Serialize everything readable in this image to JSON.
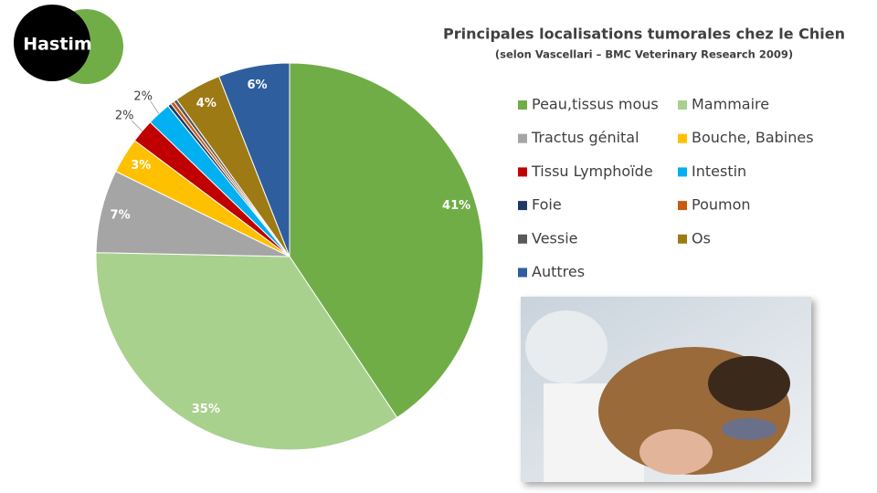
{
  "logo": {
    "text": "Hastim"
  },
  "chart_data": {
    "type": "pie",
    "title": "Principales localisations tumorales chez le Chien",
    "subtitle": "(selon Vascellari – BMC Veterinary Research 2009)",
    "categories": [
      "Peau,tissus mous",
      "Mammaire",
      "Tractus génital",
      "Bouche, Babines",
      "Tissu Lymphoïde",
      "Intestin",
      "Foie",
      "Poumon",
      "Vessie",
      "Os",
      "Auttres"
    ],
    "values": [
      41,
      35,
      7,
      3,
      2,
      2,
      0.3,
      0.3,
      0.3,
      4,
      6
    ],
    "value_labels": [
      "41%",
      "35%",
      "7%",
      "3%",
      "2%",
      "2%",
      null,
      null,
      null,
      "4%",
      "6%"
    ],
    "colors": [
      "#70ad47",
      "#a9d18e",
      "#a5a5a5",
      "#ffc000",
      "#c00000",
      "#00b0f0",
      "#203864",
      "#c55a11",
      "#595959",
      "#9e7a14",
      "#2e5e9e"
    ]
  }
}
